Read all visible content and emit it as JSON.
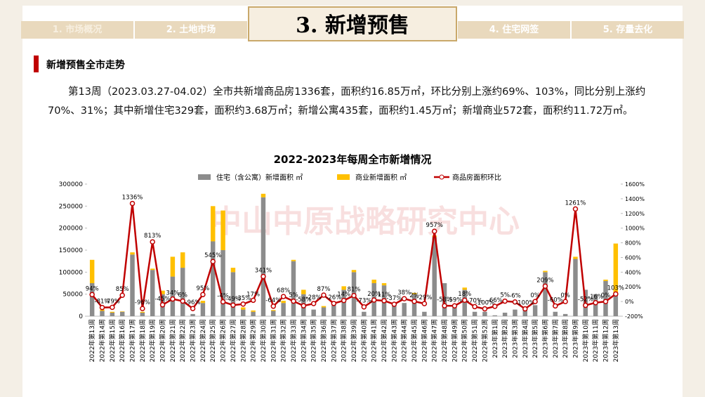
{
  "header": {
    "tabs": [
      "1. 市场概况",
      "2. 土地市场",
      "3. 新增预售",
      "4. 住宅网签",
      "5. 存量去化"
    ]
  },
  "section_title": "新增预售全市走势",
  "paragraph": "第13周（2023.03.27-04.02）全市共新增商品房1336套，面积约16.85万㎡，环比分别上涨约69%、103%，同比分别上涨约70%、31%；其中新增住宅329套，面积约3.68万㎡；新增公寓435套，面积约1.45万㎡；新增商业572套，面积约11.72万㎡。",
  "watermark": "中山中原战略研究中心",
  "chart_data": {
    "type": "bar-line",
    "title": "2022-2023年每周全市新增情况",
    "categories": [
      "2022年第13周",
      "2022年第14周",
      "2022年第15周",
      "2022年第16周",
      "2022年第17周",
      "2022年第18周",
      "2022年第19周",
      "2022年第20周",
      "2022年第21周",
      "2022年第22周",
      "2022年第23周",
      "2022年第24周",
      "2022年第25周",
      "2022年第26周",
      "2022年第27周",
      "2022年第28周",
      "2022年第29周",
      "2022年第30周",
      "2022年第31周",
      "2022年第32周",
      "2022年第33周",
      "2022年第34周",
      "2022年第35周",
      "2022年第36周",
      "2022年第37周",
      "2022年第38周",
      "2022年第39周",
      "2022年第40周",
      "2022年第41周",
      "2022年第42周",
      "2022年第43周",
      "2022年第44周",
      "2022年第45周",
      "2022年第46周",
      "2022年第47周",
      "2022年第48周",
      "2022年第49周",
      "2022年第50周",
      "2022年第51周",
      "2022年第52周",
      "2023年第1周",
      "2023年第2周",
      "2023年第3周",
      "2023年第4周",
      "2023年第5周",
      "2023年第6周",
      "2023年第7周",
      "2023年第8周",
      "2023年第9周",
      "2023年第10周",
      "2023年第11周",
      "2023年第12周",
      "2023年第13周"
    ],
    "series": [
      {
        "name": "住宅（含公寓）新增面积 ㎡",
        "color": "#8c8c8c",
        "values": [
          75000,
          12000,
          8000,
          10000,
          140000,
          8000,
          105000,
          50000,
          90000,
          110000,
          5000,
          30000,
          170000,
          150000,
          100000,
          15000,
          10000,
          270000,
          12000,
          30000,
          125000,
          50000,
          15000,
          20000,
          25000,
          60000,
          100000,
          10000,
          75000,
          70000,
          25000,
          30000,
          50000,
          10000,
          180000,
          75000,
          20000,
          60000,
          10000,
          10000,
          2000,
          8000,
          15000,
          20000,
          25000,
          100000,
          10000,
          5000,
          130000,
          60000,
          50000,
          80000,
          50000
        ]
      },
      {
        "name": "商业新增面积 ㎡",
        "color": "#ffc000",
        "values": [
          53000,
          3000,
          2000,
          1000,
          5000,
          2000,
          3000,
          8000,
          45000,
          35000,
          0,
          5000,
          80000,
          90000,
          10000,
          5000,
          3000,
          8000,
          2000,
          5000,
          3000,
          10000,
          0,
          3000,
          0,
          8000,
          5000,
          0,
          8000,
          5000,
          0,
          0,
          3000,
          0,
          3000,
          0,
          0,
          5000,
          0,
          0,
          0,
          0,
          0,
          0,
          0,
          3000,
          0,
          0,
          5000,
          0,
          0,
          3000,
          115000
        ]
      },
      {
        "name": "商品房面积环比",
        "color": "#c00000",
        "axis": "y2",
        "values": [
          94,
          -81,
          -79,
          85,
          1336,
          -96,
          813,
          -45,
          34,
          6,
          -96,
          95,
          545,
          -4,
          -49,
          -35,
          17,
          341,
          -64,
          68,
          5,
          -58,
          -28,
          87,
          -26,
          14,
          81,
          -73,
          20,
          11,
          -37,
          38,
          2,
          -29,
          957,
          -58,
          -59,
          18,
          -70,
          -100,
          -66,
          5,
          -6,
          -100,
          0,
          209,
          -60,
          0,
          1261,
          -52,
          -16,
          0,
          103
        ],
        "value_labels": [
          "94%",
          "-81%",
          "-79%",
          "85%",
          "1336%",
          "-96%",
          "813%",
          "-45%",
          "34%",
          "6%",
          "-96%",
          "95%",
          "545%",
          "-4%",
          "-49%",
          "-35%",
          "17%",
          "341%",
          "-64%",
          "68%",
          "5%",
          "-58%",
          "-28%",
          "87%",
          "-26%",
          "14%",
          "81%",
          "-73%",
          "20%",
          "11%",
          "-37%",
          "38%",
          "2%",
          "-29%",
          "957%",
          "-58%",
          "-59%",
          "18%",
          "-70%",
          "-100%",
          "-66%",
          "5%",
          "-6%",
          "-100%",
          "0%",
          "209%",
          "-60%",
          "0%",
          "1261%",
          "-52%",
          "-16%",
          "0%",
          "103%"
        ]
      }
    ],
    "ylim": [
      0,
      300000
    ],
    "yticks": [
      0,
      50000,
      100000,
      150000,
      200000,
      250000,
      300000
    ],
    "y2lim": [
      -200,
      1600
    ],
    "y2ticks": [
      {
        "value": -200,
        "label": "-200%"
      },
      {
        "value": 0,
        "label": "0%"
      },
      {
        "value": 200,
        "label": "200%"
      },
      {
        "value": 400,
        "label": "400%"
      },
      {
        "value": 600,
        "label": "600%"
      },
      {
        "value": 800,
        "label": "800%"
      },
      {
        "value": 1000,
        "label": "1000%"
      },
      {
        "value": 1200,
        "label": "1200%"
      },
      {
        "value": 1400,
        "label": "1400%"
      },
      {
        "value": 1600,
        "label": "1600%"
      }
    ]
  }
}
